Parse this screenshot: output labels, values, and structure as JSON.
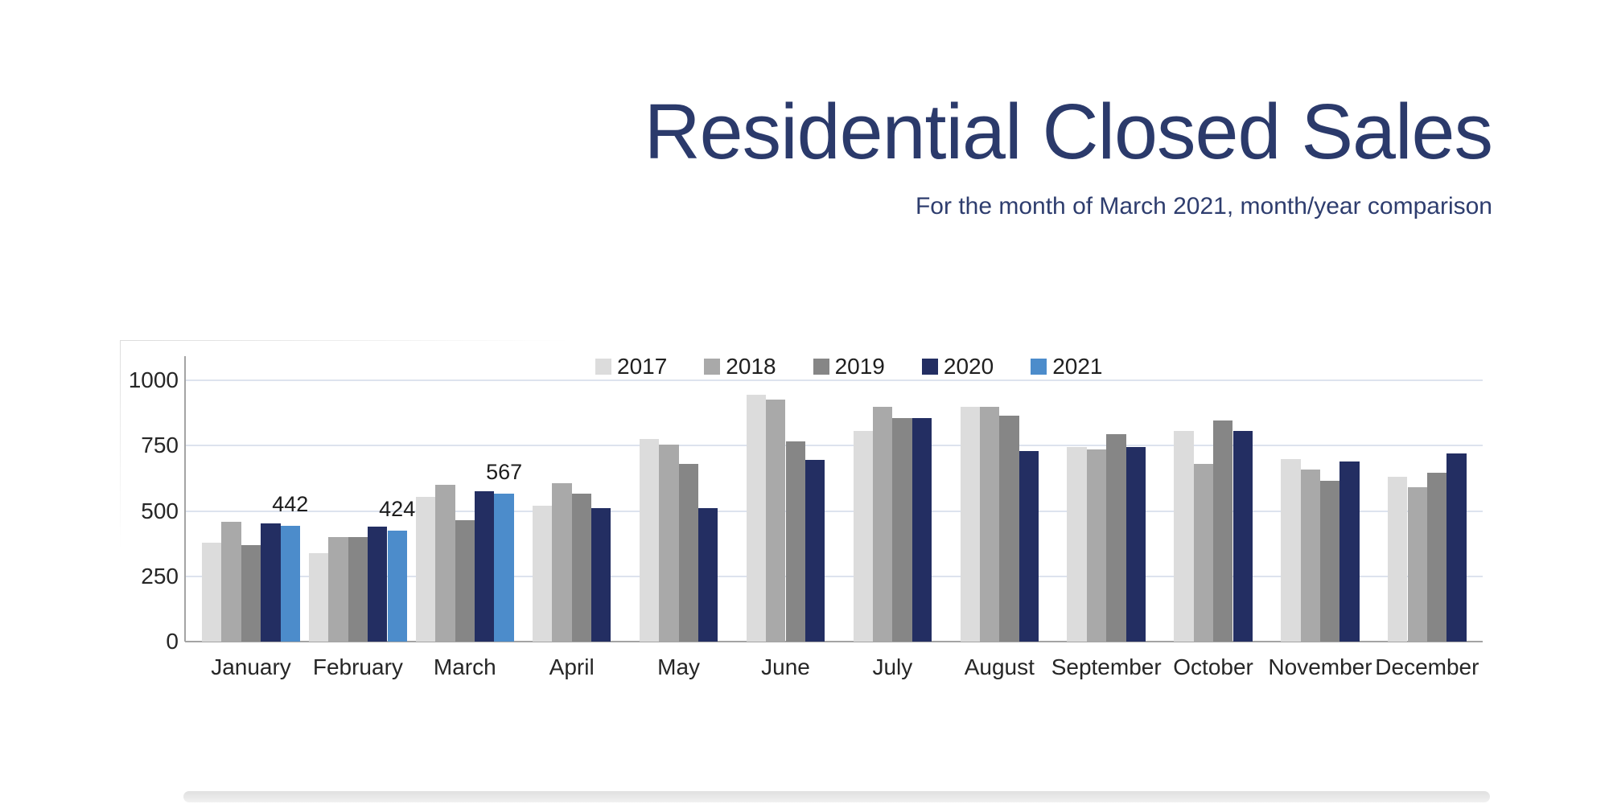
{
  "title": "Residential Closed Sales",
  "subtitle": "For the month of March 2021, month/year comparison",
  "colors": {
    "title_text": "#2b3a6b",
    "subtitle_text": "#2e3d6e",
    "grid_line": "#dde3ee",
    "axis_line": "#a4a4a4",
    "tick_text": "#262626",
    "annotation_text": "#1c1c1c"
  },
  "chart_data": {
    "type": "bar",
    "title": "Residential Closed Sales",
    "subtitle": "For the month of March 2021, month/year comparison",
    "categories": [
      "January",
      "February",
      "March",
      "April",
      "May",
      "June",
      "July",
      "August",
      "September",
      "October",
      "November",
      "December"
    ],
    "series": [
      {
        "name": "2017",
        "color": "#dcdcdc",
        "values": [
          380,
          340,
          555,
          520,
          775,
          945,
          805,
          900,
          745,
          805,
          700,
          630
        ]
      },
      {
        "name": "2018",
        "color": "#a9a9a9",
        "values": [
          460,
          400,
          600,
          605,
          755,
          925,
          900,
          900,
          735,
          680,
          660,
          590
        ]
      },
      {
        "name": "2019",
        "color": "#868686",
        "values": [
          370,
          400,
          465,
          565,
          680,
          765,
          855,
          865,
          795,
          845,
          615,
          645
        ]
      },
      {
        "name": "2020",
        "color": "#232e62",
        "values": [
          452,
          440,
          575,
          510,
          510,
          695,
          855,
          730,
          745,
          805,
          690,
          720
        ]
      },
      {
        "name": "2021",
        "color": "#4c8ccb",
        "values": [
          442,
          424,
          567,
          null,
          null,
          null,
          null,
          null,
          null,
          null,
          null,
          null
        ]
      }
    ],
    "annotations": [
      {
        "category": "January",
        "series": "2021",
        "label": "442"
      },
      {
        "category": "February",
        "series": "2021",
        "label": "424"
      },
      {
        "category": "March",
        "series": "2021",
        "label": "567"
      }
    ],
    "xlabel": "",
    "ylabel": "",
    "ylim": [
      0,
      1000
    ],
    "yticks": [
      0,
      250,
      500,
      750,
      1000
    ],
    "grid": true,
    "legend_position": "top-center"
  }
}
